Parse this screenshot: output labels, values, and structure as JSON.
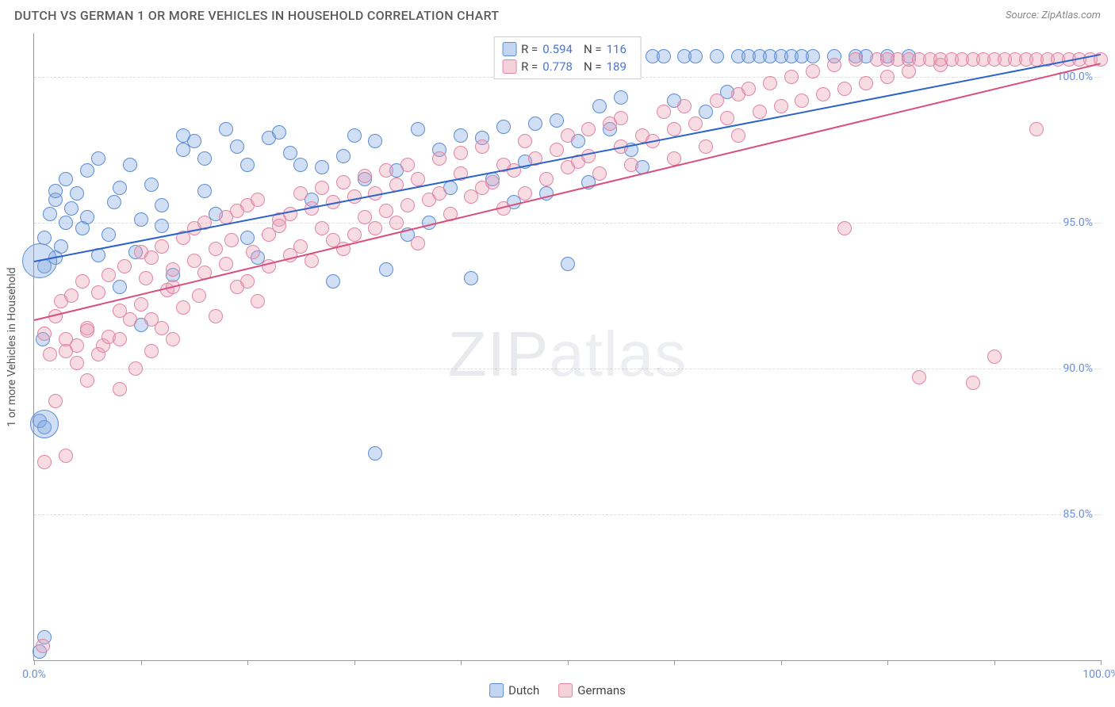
{
  "header": {
    "title": "DUTCH VS GERMAN 1 OR MORE VEHICLES IN HOUSEHOLD CORRELATION CHART",
    "source": "Source: ZipAtlas.com"
  },
  "chart": {
    "type": "scatter",
    "background_color": "#ffffff",
    "grid_color": "#dddddd",
    "axis_color": "#999999",
    "y_axis_title": "1 or more Vehicles in Household",
    "xlim": [
      0,
      100
    ],
    "ylim": [
      80,
      101.5
    ],
    "y_ticks": [
      85.0,
      90.0,
      95.0,
      100.0
    ],
    "y_tick_labels": [
      "85.0%",
      "90.0%",
      "95.0%",
      "100.0%"
    ],
    "x_ticks": [
      0,
      10,
      20,
      30,
      40,
      50,
      60,
      70,
      80,
      90,
      100
    ],
    "x_tick_labels": {
      "0": "0.0%",
      "100": "100.0%"
    },
    "tick_label_color": "#6a8fd8",
    "tick_label_fontsize": 14,
    "watermark": "ZIPatlas",
    "marker_radius": 9,
    "marker_opacity": 0.45,
    "series": [
      {
        "name": "Dutch",
        "color": "#7aa3e0",
        "stroke": "#5c8cd6",
        "fill": "rgba(122,163,224,0.35)",
        "R": "0.594",
        "N": "116",
        "trend": {
          "x1": 0,
          "y1": 93.7,
          "x2": 100,
          "y2": 100.8,
          "color": "#2c62c9",
          "width": 2
        },
        "points": [
          [
            1,
            93.5
          ],
          [
            1,
            94.5
          ],
          [
            1.5,
            95.3
          ],
          [
            2,
            95.8
          ],
          [
            2,
            96.1
          ],
          [
            2.5,
            94.2
          ],
          [
            3,
            95.0
          ],
          [
            3,
            96.5
          ],
          [
            3.5,
            95.5
          ],
          [
            4,
            96.0
          ],
          [
            4.5,
            94.8
          ],
          [
            5,
            96.8
          ],
          [
            5,
            95.2
          ],
          [
            6,
            97.2
          ],
          [
            6,
            93.9
          ],
          [
            7,
            94.6
          ],
          [
            7.5,
            95.7
          ],
          [
            8,
            96.2
          ],
          [
            8,
            92.8
          ],
          [
            9,
            97.0
          ],
          [
            9.5,
            94.0
          ],
          [
            10,
            95.1
          ],
          [
            10,
            91.5
          ],
          [
            11,
            96.3
          ],
          [
            12,
            94.9
          ],
          [
            12,
            95.6
          ],
          [
            13,
            93.2
          ],
          [
            14,
            98.0
          ],
          [
            14,
            97.5
          ],
          [
            15,
            97.8
          ],
          [
            16,
            97.2
          ],
          [
            16,
            96.1
          ],
          [
            17,
            95.3
          ],
          [
            18,
            98.2
          ],
          [
            19,
            97.6
          ],
          [
            20,
            97.0
          ],
          [
            20,
            94.5
          ],
          [
            21,
            93.8
          ],
          [
            22,
            97.9
          ],
          [
            23,
            98.1
          ],
          [
            24,
            97.4
          ],
          [
            25,
            97.0
          ],
          [
            26,
            95.8
          ],
          [
            27,
            96.9
          ],
          [
            28,
            93.0
          ],
          [
            29,
            97.3
          ],
          [
            30,
            98.0
          ],
          [
            31,
            96.5
          ],
          [
            32,
            97.8
          ],
          [
            32,
            87.1
          ],
          [
            33,
            93.4
          ],
          [
            34,
            96.8
          ],
          [
            35,
            94.6
          ],
          [
            36,
            98.2
          ],
          [
            37,
            95.0
          ],
          [
            38,
            97.5
          ],
          [
            39,
            96.2
          ],
          [
            40,
            98.0
          ],
          [
            41,
            93.1
          ],
          [
            42,
            97.9
          ],
          [
            43,
            96.5
          ],
          [
            44,
            98.3
          ],
          [
            45,
            95.7
          ],
          [
            46,
            97.1
          ],
          [
            47,
            98.4
          ],
          [
            48,
            96.0
          ],
          [
            49,
            98.5
          ],
          [
            50,
            93.6
          ],
          [
            51,
            97.8
          ],
          [
            52,
            96.4
          ],
          [
            53,
            99.0
          ],
          [
            54,
            98.2
          ],
          [
            55,
            99.3
          ],
          [
            56,
            97.5
          ],
          [
            57,
            96.9
          ],
          [
            58,
            100.7
          ],
          [
            59,
            100.7
          ],
          [
            60,
            99.2
          ],
          [
            61,
            100.7
          ],
          [
            62,
            100.7
          ],
          [
            63,
            98.8
          ],
          [
            64,
            100.7
          ],
          [
            65,
            99.5
          ],
          [
            66,
            100.7
          ],
          [
            67,
            100.7
          ],
          [
            68,
            100.7
          ],
          [
            69,
            100.7
          ],
          [
            70,
            100.7
          ],
          [
            71,
            100.7
          ],
          [
            72,
            100.7
          ],
          [
            73,
            100.7
          ],
          [
            75,
            100.7
          ],
          [
            77,
            100.7
          ],
          [
            78,
            100.7
          ],
          [
            80,
            100.7
          ],
          [
            82,
            100.7
          ],
          [
            0.5,
            88.2
          ],
          [
            1,
            88.0
          ],
          [
            2,
            93.8
          ],
          [
            1,
            80.8
          ],
          [
            0.5,
            80.3
          ],
          [
            0.8,
            91.0
          ]
        ],
        "big_points": [
          [
            0.5,
            93.7,
            22
          ],
          [
            1,
            88.1,
            18
          ]
        ]
      },
      {
        "name": "Germans",
        "color": "#e89ab2",
        "stroke": "#e185a3",
        "fill": "rgba(232,154,178,0.35)",
        "R": "0.778",
        "N": "189",
        "trend": {
          "x1": 0,
          "y1": 91.7,
          "x2": 100,
          "y2": 100.5,
          "color": "#d94f7a",
          "width": 2
        },
        "points": [
          [
            1,
            91.2
          ],
          [
            1.5,
            90.5
          ],
          [
            2,
            91.8
          ],
          [
            2,
            88.9
          ],
          [
            2.5,
            92.3
          ],
          [
            3,
            87.0
          ],
          [
            3,
            91.0
          ],
          [
            3.5,
            92.5
          ],
          [
            4,
            90.2
          ],
          [
            4.5,
            93.0
          ],
          [
            5,
            91.4
          ],
          [
            5,
            89.6
          ],
          [
            6,
            92.6
          ],
          [
            6.5,
            90.8
          ],
          [
            7,
            93.2
          ],
          [
            7,
            91.1
          ],
          [
            8,
            89.3
          ],
          [
            8,
            92.0
          ],
          [
            8.5,
            93.5
          ],
          [
            9,
            91.7
          ],
          [
            9.5,
            90.0
          ],
          [
            10,
            94.0
          ],
          [
            10,
            92.2
          ],
          [
            10.5,
            93.1
          ],
          [
            11,
            90.6
          ],
          [
            11,
            93.8
          ],
          [
            12,
            91.4
          ],
          [
            12,
            94.2
          ],
          [
            12.5,
            92.7
          ],
          [
            13,
            93.4
          ],
          [
            13,
            91.0
          ],
          [
            14,
            94.5
          ],
          [
            14,
            92.1
          ],
          [
            15,
            93.7
          ],
          [
            15,
            94.8
          ],
          [
            15.5,
            92.5
          ],
          [
            16,
            95.0
          ],
          [
            16,
            93.3
          ],
          [
            17,
            94.1
          ],
          [
            17,
            91.8
          ],
          [
            18,
            95.2
          ],
          [
            18,
            93.6
          ],
          [
            18.5,
            94.4
          ],
          [
            19,
            92.8
          ],
          [
            19,
            95.4
          ],
          [
            20,
            93.0
          ],
          [
            20,
            95.6
          ],
          [
            20.5,
            94.0
          ],
          [
            21,
            92.3
          ],
          [
            21,
            95.8
          ],
          [
            22,
            94.6
          ],
          [
            22,
            93.5
          ],
          [
            23,
            95.1
          ],
          [
            23,
            94.9
          ],
          [
            24,
            93.9
          ],
          [
            24,
            95.3
          ],
          [
            25,
            94.2
          ],
          [
            25,
            96.0
          ],
          [
            26,
            93.7
          ],
          [
            26,
            95.5
          ],
          [
            27,
            94.8
          ],
          [
            27,
            96.2
          ],
          [
            28,
            94.4
          ],
          [
            28,
            95.7
          ],
          [
            29,
            96.4
          ],
          [
            29,
            94.1
          ],
          [
            30,
            95.9
          ],
          [
            30,
            94.6
          ],
          [
            31,
            96.6
          ],
          [
            31,
            95.2
          ],
          [
            32,
            94.8
          ],
          [
            32,
            96.0
          ],
          [
            33,
            95.4
          ],
          [
            33,
            96.8
          ],
          [
            34,
            95.0
          ],
          [
            34,
            96.3
          ],
          [
            35,
            95.6
          ],
          [
            35,
            97.0
          ],
          [
            36,
            94.3
          ],
          [
            36,
            96.5
          ],
          [
            37,
            95.8
          ],
          [
            38,
            97.2
          ],
          [
            38,
            96.0
          ],
          [
            39,
            95.3
          ],
          [
            40,
            96.7
          ],
          [
            40,
            97.4
          ],
          [
            41,
            95.9
          ],
          [
            42,
            96.2
          ],
          [
            42,
            97.6
          ],
          [
            43,
            96.4
          ],
          [
            44,
            95.5
          ],
          [
            44,
            97.0
          ],
          [
            45,
            96.8
          ],
          [
            46,
            97.8
          ],
          [
            46,
            96.0
          ],
          [
            47,
            97.2
          ],
          [
            48,
            96.5
          ],
          [
            49,
            97.5
          ],
          [
            50,
            98.0
          ],
          [
            50,
            96.9
          ],
          [
            51,
            97.1
          ],
          [
            52,
            98.2
          ],
          [
            52,
            97.3
          ],
          [
            53,
            96.7
          ],
          [
            54,
            98.4
          ],
          [
            55,
            97.6
          ],
          [
            55,
            98.6
          ],
          [
            56,
            97.0
          ],
          [
            57,
            98.0
          ],
          [
            58,
            97.8
          ],
          [
            59,
            98.8
          ],
          [
            60,
            98.2
          ],
          [
            60,
            97.2
          ],
          [
            61,
            99.0
          ],
          [
            62,
            98.4
          ],
          [
            63,
            97.6
          ],
          [
            64,
            99.2
          ],
          [
            65,
            98.6
          ],
          [
            66,
            99.4
          ],
          [
            66,
            98.0
          ],
          [
            67,
            99.6
          ],
          [
            68,
            98.8
          ],
          [
            69,
            99.8
          ],
          [
            70,
            99.0
          ],
          [
            71,
            100.0
          ],
          [
            72,
            99.2
          ],
          [
            73,
            100.2
          ],
          [
            74,
            99.4
          ],
          [
            75,
            100.4
          ],
          [
            76,
            99.6
          ],
          [
            76,
            94.8
          ],
          [
            77,
            100.6
          ],
          [
            78,
            99.8
          ],
          [
            79,
            100.6
          ],
          [
            80,
            100.0
          ],
          [
            80,
            100.6
          ],
          [
            81,
            100.6
          ],
          [
            82,
            100.2
          ],
          [
            82,
            100.6
          ],
          [
            83,
            89.7
          ],
          [
            83,
            100.6
          ],
          [
            84,
            100.6
          ],
          [
            85,
            100.4
          ],
          [
            85,
            100.6
          ],
          [
            86,
            100.6
          ],
          [
            87,
            100.6
          ],
          [
            88,
            100.6
          ],
          [
            88,
            89.5
          ],
          [
            89,
            100.6
          ],
          [
            90,
            100.6
          ],
          [
            90,
            90.4
          ],
          [
            91,
            100.6
          ],
          [
            92,
            100.6
          ],
          [
            93,
            100.6
          ],
          [
            94,
            98.2
          ],
          [
            94,
            100.6
          ],
          [
            95,
            100.6
          ],
          [
            96,
            100.6
          ],
          [
            97,
            100.6
          ],
          [
            98,
            100.6
          ],
          [
            99,
            100.6
          ],
          [
            100,
            100.6
          ],
          [
            1,
            86.8
          ],
          [
            3,
            90.6
          ],
          [
            6,
            90.5
          ],
          [
            4,
            90.8
          ],
          [
            5,
            91.3
          ],
          [
            8,
            91.0
          ],
          [
            11,
            91.7
          ],
          [
            13,
            92.8
          ],
          [
            0.8,
            80.5
          ]
        ],
        "big_points": []
      }
    ]
  },
  "legend_top": {
    "rows": [
      {
        "swatch_fill": "rgba(122,163,224,0.45)",
        "swatch_border": "#5c8cd6",
        "R_label": "R =",
        "R": "0.594",
        "N_label": "N =",
        "N": "116"
      },
      {
        "swatch_fill": "rgba(232,154,178,0.45)",
        "swatch_border": "#e185a3",
        "R_label": "R =",
        "R": "0.778",
        "N_label": "N =",
        "N": "189"
      }
    ]
  },
  "legend_bottom": {
    "items": [
      {
        "swatch_fill": "rgba(122,163,224,0.45)",
        "swatch_border": "#5c8cd6",
        "label": "Dutch"
      },
      {
        "swatch_fill": "rgba(232,154,178,0.45)",
        "swatch_border": "#e185a3",
        "label": "Germans"
      }
    ]
  }
}
